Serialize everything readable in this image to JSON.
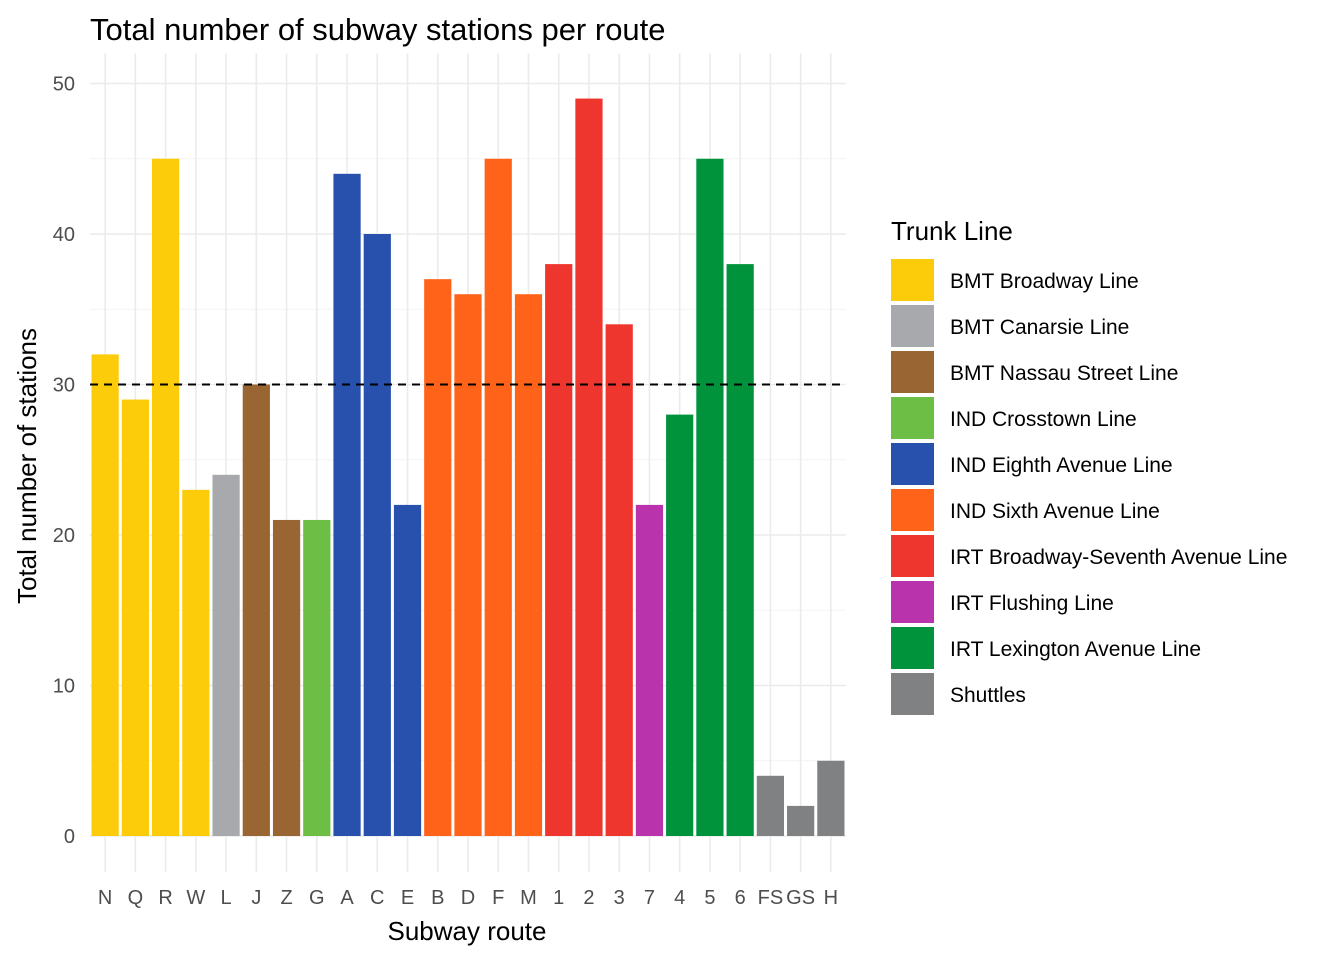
{
  "chart_data": {
    "type": "bar",
    "title": "Total number of subway stations per route",
    "xlabel": "Subway route",
    "ylabel": "Total number of stations",
    "ylim": [
      0,
      52
    ],
    "yticks": [
      0,
      10,
      20,
      30,
      40,
      50
    ],
    "grid": true,
    "reference_line": {
      "y": 30,
      "style": "dashed",
      "color": "#000000"
    },
    "legend": {
      "title": "Trunk Line",
      "placement": "right",
      "entries": [
        {
          "name": "BMT Broadway Line",
          "color": "#FCCC0A"
        },
        {
          "name": "BMT Canarsie Line",
          "color": "#A7A9AC"
        },
        {
          "name": "BMT Nassau Street Line",
          "color": "#996633"
        },
        {
          "name": "IND Crosstown Line",
          "color": "#6CBE45"
        },
        {
          "name": "IND Eighth Avenue Line",
          "color": "#2850AD"
        },
        {
          "name": "IND Sixth Avenue Line",
          "color": "#FF6319"
        },
        {
          "name": "IRT Broadway-Seventh Avenue Line",
          "color": "#EE352E"
        },
        {
          "name": "IRT Flushing Line",
          "color": "#B933AD"
        },
        {
          "name": "IRT Lexington Avenue Line",
          "color": "#00933C"
        },
        {
          "name": "Shuttles",
          "color": "#808183"
        }
      ]
    },
    "categories": [
      "N",
      "Q",
      "R",
      "W",
      "L",
      "J",
      "Z",
      "G",
      "A",
      "C",
      "E",
      "B",
      "D",
      "F",
      "M",
      "1",
      "2",
      "3",
      "7",
      "4",
      "5",
      "6",
      "FS",
      "GS",
      "H"
    ],
    "values": [
      32,
      29,
      45,
      23,
      24,
      30,
      21,
      21,
      44,
      40,
      22,
      37,
      36,
      45,
      36,
      38,
      49,
      34,
      22,
      28,
      45,
      38,
      4,
      2,
      5
    ],
    "groups": [
      "BMT Broadway Line",
      "BMT Broadway Line",
      "BMT Broadway Line",
      "BMT Broadway Line",
      "BMT Canarsie Line",
      "BMT Nassau Street Line",
      "BMT Nassau Street Line",
      "IND Crosstown Line",
      "IND Eighth Avenue Line",
      "IND Eighth Avenue Line",
      "IND Eighth Avenue Line",
      "IND Sixth Avenue Line",
      "IND Sixth Avenue Line",
      "IND Sixth Avenue Line",
      "IND Sixth Avenue Line",
      "IRT Broadway-Seventh Avenue Line",
      "IRT Broadway-Seventh Avenue Line",
      "IRT Broadway-Seventh Avenue Line",
      "IRT Flushing Line",
      "IRT Lexington Avenue Line",
      "IRT Lexington Avenue Line",
      "IRT Lexington Avenue Line",
      "Shuttles",
      "Shuttles",
      "Shuttles"
    ]
  }
}
